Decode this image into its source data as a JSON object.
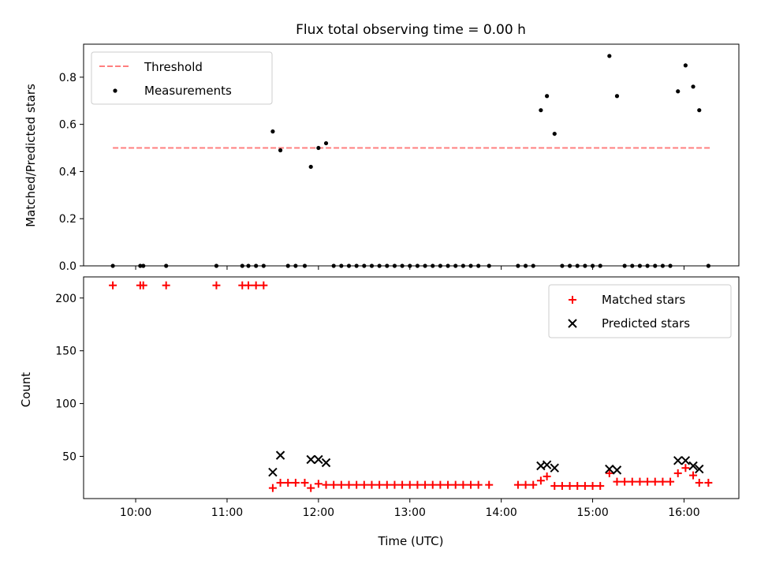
{
  "title": "Flux total observing time = 0.00 h",
  "chart_data": [
    {
      "type": "scatter",
      "panel": "top",
      "ylabel": "Matched/Predicted stars",
      "ylim": [
        0,
        0.94
      ],
      "yticks": [
        "0.0",
        "0.2",
        "0.4",
        "0.6",
        "0.8"
      ],
      "xlim_hours": [
        9.43,
        16.6
      ],
      "legend": {
        "placement": "top-left",
        "entries": [
          "Threshold",
          "Measurements"
        ]
      },
      "threshold": {
        "name": "Threshold",
        "y": 0.5,
        "x_start": "09:45",
        "x_end": "16:17",
        "color": "#ff7f7f",
        "style": "dashed"
      },
      "series": [
        {
          "name": "Measurements",
          "color": "#000000",
          "points": [
            [
              "09:45",
              0.0
            ],
            [
              "10:03",
              0.0
            ],
            [
              "10:05",
              0.0
            ],
            [
              "10:20",
              0.0
            ],
            [
              "10:53",
              0.0
            ],
            [
              "11:10",
              0.0
            ],
            [
              "11:14",
              0.0
            ],
            [
              "11:19",
              0.0
            ],
            [
              "11:24",
              0.0
            ],
            [
              "11:30",
              0.57
            ],
            [
              "11:35",
              0.49
            ],
            [
              "11:40",
              0.0
            ],
            [
              "11:45",
              0.0
            ],
            [
              "11:51",
              0.0
            ],
            [
              "11:55",
              0.42
            ],
            [
              "12:00",
              0.5
            ],
            [
              "12:05",
              0.52
            ],
            [
              "12:10",
              0.0
            ],
            [
              "12:15",
              0.0
            ],
            [
              "12:20",
              0.0
            ],
            [
              "12:25",
              0.0
            ],
            [
              "12:30",
              0.0
            ],
            [
              "12:35",
              0.0
            ],
            [
              "12:40",
              0.0
            ],
            [
              "12:45",
              0.0
            ],
            [
              "12:50",
              0.0
            ],
            [
              "12:55",
              0.0
            ],
            [
              "13:00",
              0.0
            ],
            [
              "13:05",
              0.0
            ],
            [
              "13:10",
              0.0
            ],
            [
              "13:15",
              0.0
            ],
            [
              "13:20",
              0.0
            ],
            [
              "13:25",
              0.0
            ],
            [
              "13:30",
              0.0
            ],
            [
              "13:35",
              0.0
            ],
            [
              "13:40",
              0.0
            ],
            [
              "13:45",
              0.0
            ],
            [
              "13:52",
              0.0
            ],
            [
              "14:11",
              0.0
            ],
            [
              "14:16",
              0.0
            ],
            [
              "14:21",
              0.0
            ],
            [
              "14:26",
              0.66
            ],
            [
              "14:30",
              0.72
            ],
            [
              "14:35",
              0.56
            ],
            [
              "14:40",
              0.0
            ],
            [
              "14:45",
              0.0
            ],
            [
              "14:50",
              0.0
            ],
            [
              "14:55",
              0.0
            ],
            [
              "15:00",
              0.0
            ],
            [
              "15:05",
              0.0
            ],
            [
              "15:11",
              0.89
            ],
            [
              "15:16",
              0.72
            ],
            [
              "15:21",
              0.0
            ],
            [
              "15:26",
              0.0
            ],
            [
              "15:31",
              0.0
            ],
            [
              "15:36",
              0.0
            ],
            [
              "15:41",
              0.0
            ],
            [
              "15:46",
              0.0
            ],
            [
              "15:51",
              0.0
            ],
            [
              "15:56",
              0.74
            ],
            [
              "16:01",
              0.85
            ],
            [
              "16:06",
              0.76
            ],
            [
              "16:10",
              0.66
            ],
            [
              "16:16",
              0.0
            ]
          ]
        }
      ]
    },
    {
      "type": "scatter",
      "panel": "bottom",
      "xlabel": "Time (UTC)",
      "ylabel": "Count",
      "ylim": [
        10,
        220
      ],
      "yticks": [
        "50",
        "100",
        "150",
        "200"
      ],
      "xlim_hours": [
        9.43,
        16.6
      ],
      "xticks": [
        "10:00",
        "11:00",
        "12:00",
        "13:00",
        "14:00",
        "15:00",
        "16:00"
      ],
      "legend": {
        "placement": "top-right",
        "entries": [
          "Matched stars",
          "Predicted stars"
        ]
      },
      "series": [
        {
          "name": "Matched stars",
          "color": "#ff0000",
          "marker": "plus",
          "points": [
            [
              "09:45",
              212
            ],
            [
              "10:03",
              212
            ],
            [
              "10:05",
              212
            ],
            [
              "10:20",
              212
            ],
            [
              "10:53",
              212
            ],
            [
              "11:10",
              212
            ],
            [
              "11:14",
              212
            ],
            [
              "11:19",
              212
            ],
            [
              "11:24",
              212
            ],
            [
              "11:30",
              20
            ],
            [
              "11:35",
              25
            ],
            [
              "11:40",
              25
            ],
            [
              "11:45",
              25
            ],
            [
              "11:51",
              25
            ],
            [
              "11:55",
              20
            ],
            [
              "12:00",
              24
            ],
            [
              "12:05",
              23
            ],
            [
              "12:10",
              23
            ],
            [
              "12:15",
              23
            ],
            [
              "12:20",
              23
            ],
            [
              "12:25",
              23
            ],
            [
              "12:30",
              23
            ],
            [
              "12:35",
              23
            ],
            [
              "12:40",
              23
            ],
            [
              "12:45",
              23
            ],
            [
              "12:50",
              23
            ],
            [
              "12:55",
              23
            ],
            [
              "13:00",
              23
            ],
            [
              "13:05",
              23
            ],
            [
              "13:10",
              23
            ],
            [
              "13:15",
              23
            ],
            [
              "13:20",
              23
            ],
            [
              "13:25",
              23
            ],
            [
              "13:30",
              23
            ],
            [
              "13:35",
              23
            ],
            [
              "13:40",
              23
            ],
            [
              "13:45",
              23
            ],
            [
              "13:52",
              23
            ],
            [
              "14:11",
              23
            ],
            [
              "14:16",
              23
            ],
            [
              "14:21",
              23
            ],
            [
              "14:26",
              27
            ],
            [
              "14:30",
              31
            ],
            [
              "14:35",
              22
            ],
            [
              "14:40",
              22
            ],
            [
              "14:45",
              22
            ],
            [
              "14:50",
              22
            ],
            [
              "14:55",
              22
            ],
            [
              "15:00",
              22
            ],
            [
              "15:05",
              22
            ],
            [
              "15:11",
              34
            ],
            [
              "15:16",
              26
            ],
            [
              "15:21",
              26
            ],
            [
              "15:26",
              26
            ],
            [
              "15:31",
              26
            ],
            [
              "15:36",
              26
            ],
            [
              "15:41",
              26
            ],
            [
              "15:46",
              26
            ],
            [
              "15:51",
              26
            ],
            [
              "15:56",
              34
            ],
            [
              "16:01",
              39
            ],
            [
              "16:06",
              32
            ],
            [
              "16:10",
              25
            ],
            [
              "16:16",
              25
            ]
          ]
        },
        {
          "name": "Predicted stars",
          "color": "#000000",
          "marker": "x",
          "points": [
            [
              "11:30",
              35
            ],
            [
              "11:35",
              51
            ],
            [
              "11:55",
              47
            ],
            [
              "12:00",
              47
            ],
            [
              "12:05",
              44
            ],
            [
              "14:26",
              41
            ],
            [
              "14:30",
              42
            ],
            [
              "14:35",
              39
            ],
            [
              "15:11",
              38
            ],
            [
              "15:16",
              37
            ],
            [
              "15:56",
              46
            ],
            [
              "16:01",
              46
            ],
            [
              "16:06",
              41
            ],
            [
              "16:10",
              38
            ]
          ]
        }
      ]
    }
  ]
}
